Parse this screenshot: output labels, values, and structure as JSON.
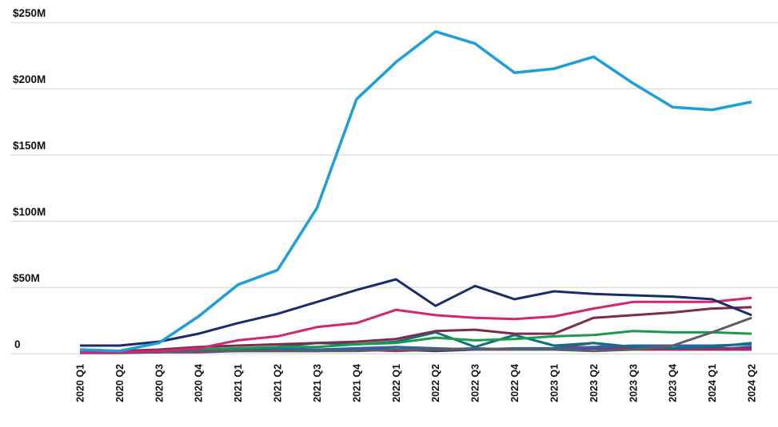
{
  "chart_data": {
    "type": "line",
    "title": "",
    "xlabel": "",
    "ylabel": "",
    "legend_position": "none",
    "grid": true,
    "ylim": [
      0,
      260
    ],
    "y_ticks": [
      {
        "label": "$250M",
        "value": 250
      },
      {
        "label": "$200M",
        "value": 200
      },
      {
        "label": "$150M",
        "value": 150
      },
      {
        "label": "$100M",
        "value": 100
      },
      {
        "label": "$50M",
        "value": 50
      },
      {
        "label": "0",
        "value": 0
      }
    ],
    "x_tick_rotation": -90,
    "categories": [
      "2020 Q1",
      "2020 Q2",
      "2020 Q3",
      "2020 Q4",
      "2021 Q1",
      "2021 Q2",
      "2021 Q3",
      "2021 Q4",
      "2022 Q1",
      "2022 Q2",
      "2022 Q3",
      "2022 Q4",
      "2023 Q1",
      "2023 Q2",
      "2023 Q3",
      "2023 Q4",
      "2024 Q1",
      "2024 Q2"
    ],
    "series": [
      {
        "name": "series-dark-slate-blue",
        "color": "#2c3f66",
        "values": [
          2,
          2,
          2,
          3,
          3,
          3,
          2,
          3,
          3,
          2,
          3,
          3,
          3,
          4,
          3,
          3,
          3,
          5
        ]
      },
      {
        "name": "series-purple",
        "color": "#7b3596",
        "values": [
          0.5,
          0.5,
          1,
          1,
          2,
          2,
          2,
          3,
          3,
          3,
          3,
          3,
          3,
          4,
          4,
          4,
          4,
          4
        ]
      },
      {
        "name": "series-crimson",
        "color": "#a62960",
        "values": [
          1,
          1,
          1,
          2,
          2,
          3,
          3,
          3,
          2,
          3,
          3,
          3,
          4,
          8,
          3,
          3,
          3,
          3
        ]
      },
      {
        "name": "series-blue",
        "color": "#2a64ad",
        "values": [
          1,
          1,
          2,
          3,
          4,
          4,
          3,
          4,
          5,
          4,
          3,
          4,
          4,
          5,
          6,
          6,
          6,
          7
        ]
      },
      {
        "name": "series-teal",
        "color": "#126f7e",
        "values": [
          1,
          1,
          1,
          2,
          3,
          5,
          8,
          7,
          9,
          16,
          5,
          14,
          6,
          8,
          5,
          4,
          5,
          8
        ]
      },
      {
        "name": "series-green",
        "color": "#1a9b4c",
        "values": [
          1,
          1,
          2,
          3,
          4,
          5,
          5,
          7,
          8,
          12,
          10,
          11,
          13,
          14,
          17,
          16,
          16,
          15
        ]
      },
      {
        "name": "series-gray",
        "color": "#5a5f66",
        "values": [
          1,
          1,
          1,
          2,
          2,
          2,
          2,
          2,
          3,
          3,
          4,
          3,
          3,
          2,
          3,
          6,
          16,
          27
        ]
      },
      {
        "name": "series-plum",
        "color": "#7e2b50",
        "values": [
          2,
          2,
          3,
          5,
          6,
          7,
          8,
          9,
          11,
          17,
          18,
          15,
          15,
          27,
          29,
          31,
          34,
          35
        ]
      },
      {
        "name": "series-pink",
        "color": "#d0276f",
        "values": [
          1,
          1,
          2,
          4,
          10,
          13,
          20,
          23,
          33,
          29,
          27,
          26,
          28,
          34,
          39,
          39,
          39,
          42
        ]
      },
      {
        "name": "series-navy",
        "color": "#1a2d6b",
        "values": [
          6,
          6,
          9,
          15,
          23,
          30,
          39,
          48,
          56,
          36,
          51,
          41,
          47,
          45,
          44,
          43,
          41,
          29
        ]
      },
      {
        "name": "series-cyan",
        "color": "#1e9fd8",
        "values": [
          3,
          2,
          8,
          28,
          52,
          63,
          110,
          192,
          220,
          243,
          234,
          212,
          215,
          224,
          204,
          186,
          184,
          190
        ]
      }
    ]
  },
  "styles": {
    "background": "#ffffff",
    "grid_color": "#e0e0e0",
    "axis_text_color": "#111111"
  }
}
